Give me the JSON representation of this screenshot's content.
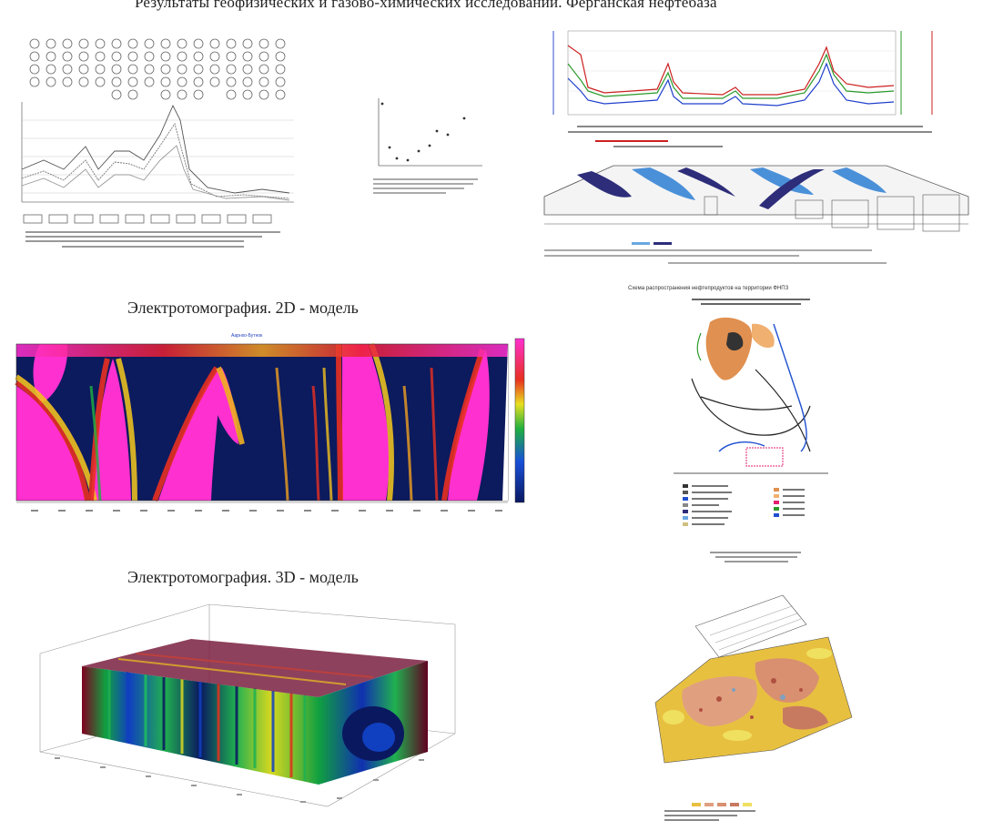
{
  "header": {
    "title": "Результаты геофизических и газово-химических исследований. Ферганская нефтебаза"
  },
  "sections": {
    "tomo2d_title": "Электротомография. 2D - модель",
    "tomo3d_title": "Электротомография. 3D - модель"
  },
  "map": {
    "title": "Схема распространения нефтепродуктов на территории ФНПЗ"
  },
  "tomo2d": {
    "plot_label": "Аарнхо-Бутнок"
  }
}
